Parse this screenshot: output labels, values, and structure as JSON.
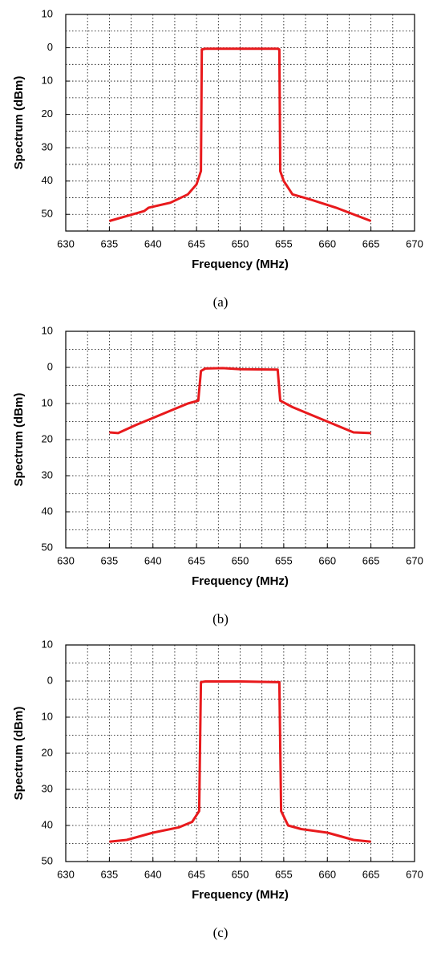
{
  "chart_data": [
    {
      "type": "line",
      "caption": "(a)",
      "xlabel": "Frequency (MHz)",
      "ylabel": "Spectrum (dBm)",
      "xlim": [
        630,
        670
      ],
      "xticks": [
        630,
        635,
        640,
        645,
        650,
        655,
        660,
        665,
        670
      ],
      "ylim": [
        -55,
        10
      ],
      "yticks": [
        10,
        0,
        {
          "value": -10,
          "label": "10"
        },
        {
          "value": -20,
          "label": "20"
        },
        {
          "value": -30,
          "label": "30"
        },
        {
          "value": -40,
          "label": "40"
        },
        {
          "value": -50,
          "label": "50"
        }
      ],
      "series": [
        {
          "color": "#e8191c",
          "x": [
            635,
            637,
            639,
            639.5,
            642,
            644,
            645,
            645.5,
            645.6,
            646,
            648,
            650,
            652,
            654.3,
            654.5,
            654.6,
            655,
            656,
            658,
            661,
            665
          ],
          "values": [
            -52,
            -50.5,
            -49,
            -48,
            -46.5,
            -44,
            -41,
            -37,
            -0.5,
            -0.3,
            -0.3,
            -0.3,
            -0.3,
            -0.3,
            -0.5,
            -37,
            -40,
            -44,
            -45.5,
            -48,
            -52
          ]
        }
      ]
    },
    {
      "type": "line",
      "caption": "(b)",
      "xlabel": "Frequency (MHz)",
      "ylabel": "Spectrum (dBm)",
      "xlim": [
        630,
        670
      ],
      "xticks": [
        630,
        635,
        640,
        645,
        650,
        655,
        660,
        665,
        670
      ],
      "ylim": [
        -50,
        10
      ],
      "yticks": [
        10,
        0,
        {
          "value": -10,
          "label": "10"
        },
        {
          "value": -20,
          "label": "20"
        },
        {
          "value": -30,
          "label": "30"
        },
        {
          "value": -40,
          "label": "40"
        },
        {
          "value": -50,
          "label": "50"
        }
      ],
      "series": [
        {
          "color": "#e8191c",
          "x": [
            635,
            636,
            638,
            640,
            642,
            644,
            645.2,
            645.5,
            646,
            648,
            650,
            654.3,
            654.6,
            656,
            658,
            660,
            662,
            663,
            665
          ],
          "values": [
            -18,
            -18.2,
            -16,
            -14,
            -12,
            -10,
            -9.2,
            -1,
            -0.3,
            -0.2,
            -0.5,
            -0.6,
            -9.2,
            -11,
            -13,
            -15,
            -17,
            -18,
            -18.2
          ]
        }
      ]
    },
    {
      "type": "line",
      "caption": "(c)",
      "xlabel": "Frequency (MHz)",
      "ylabel": "Spectrum (dBm)",
      "xlim": [
        630,
        670
      ],
      "xticks": [
        630,
        635,
        640,
        645,
        650,
        655,
        660,
        665,
        670
      ],
      "ylim": [
        -50,
        10
      ],
      "yticks": [
        10,
        0,
        {
          "value": -10,
          "label": "10"
        },
        {
          "value": -20,
          "label": "20"
        },
        {
          "value": -30,
          "label": "30"
        },
        {
          "value": -40,
          "label": "40"
        },
        {
          "value": -50,
          "label": "50"
        }
      ],
      "series": [
        {
          "color": "#e8191c",
          "x": [
            635,
            637,
            640,
            643,
            644.5,
            645.3,
            645.5,
            646,
            650,
            654.5,
            654.7,
            655.5,
            657,
            660,
            663,
            665
          ],
          "values": [
            -44.5,
            -44,
            -42,
            -40.5,
            -39,
            -36,
            -0.3,
            -0.1,
            -0.1,
            -0.3,
            -36,
            -40,
            -41,
            -42,
            -44,
            -44.5
          ]
        }
      ]
    }
  ]
}
